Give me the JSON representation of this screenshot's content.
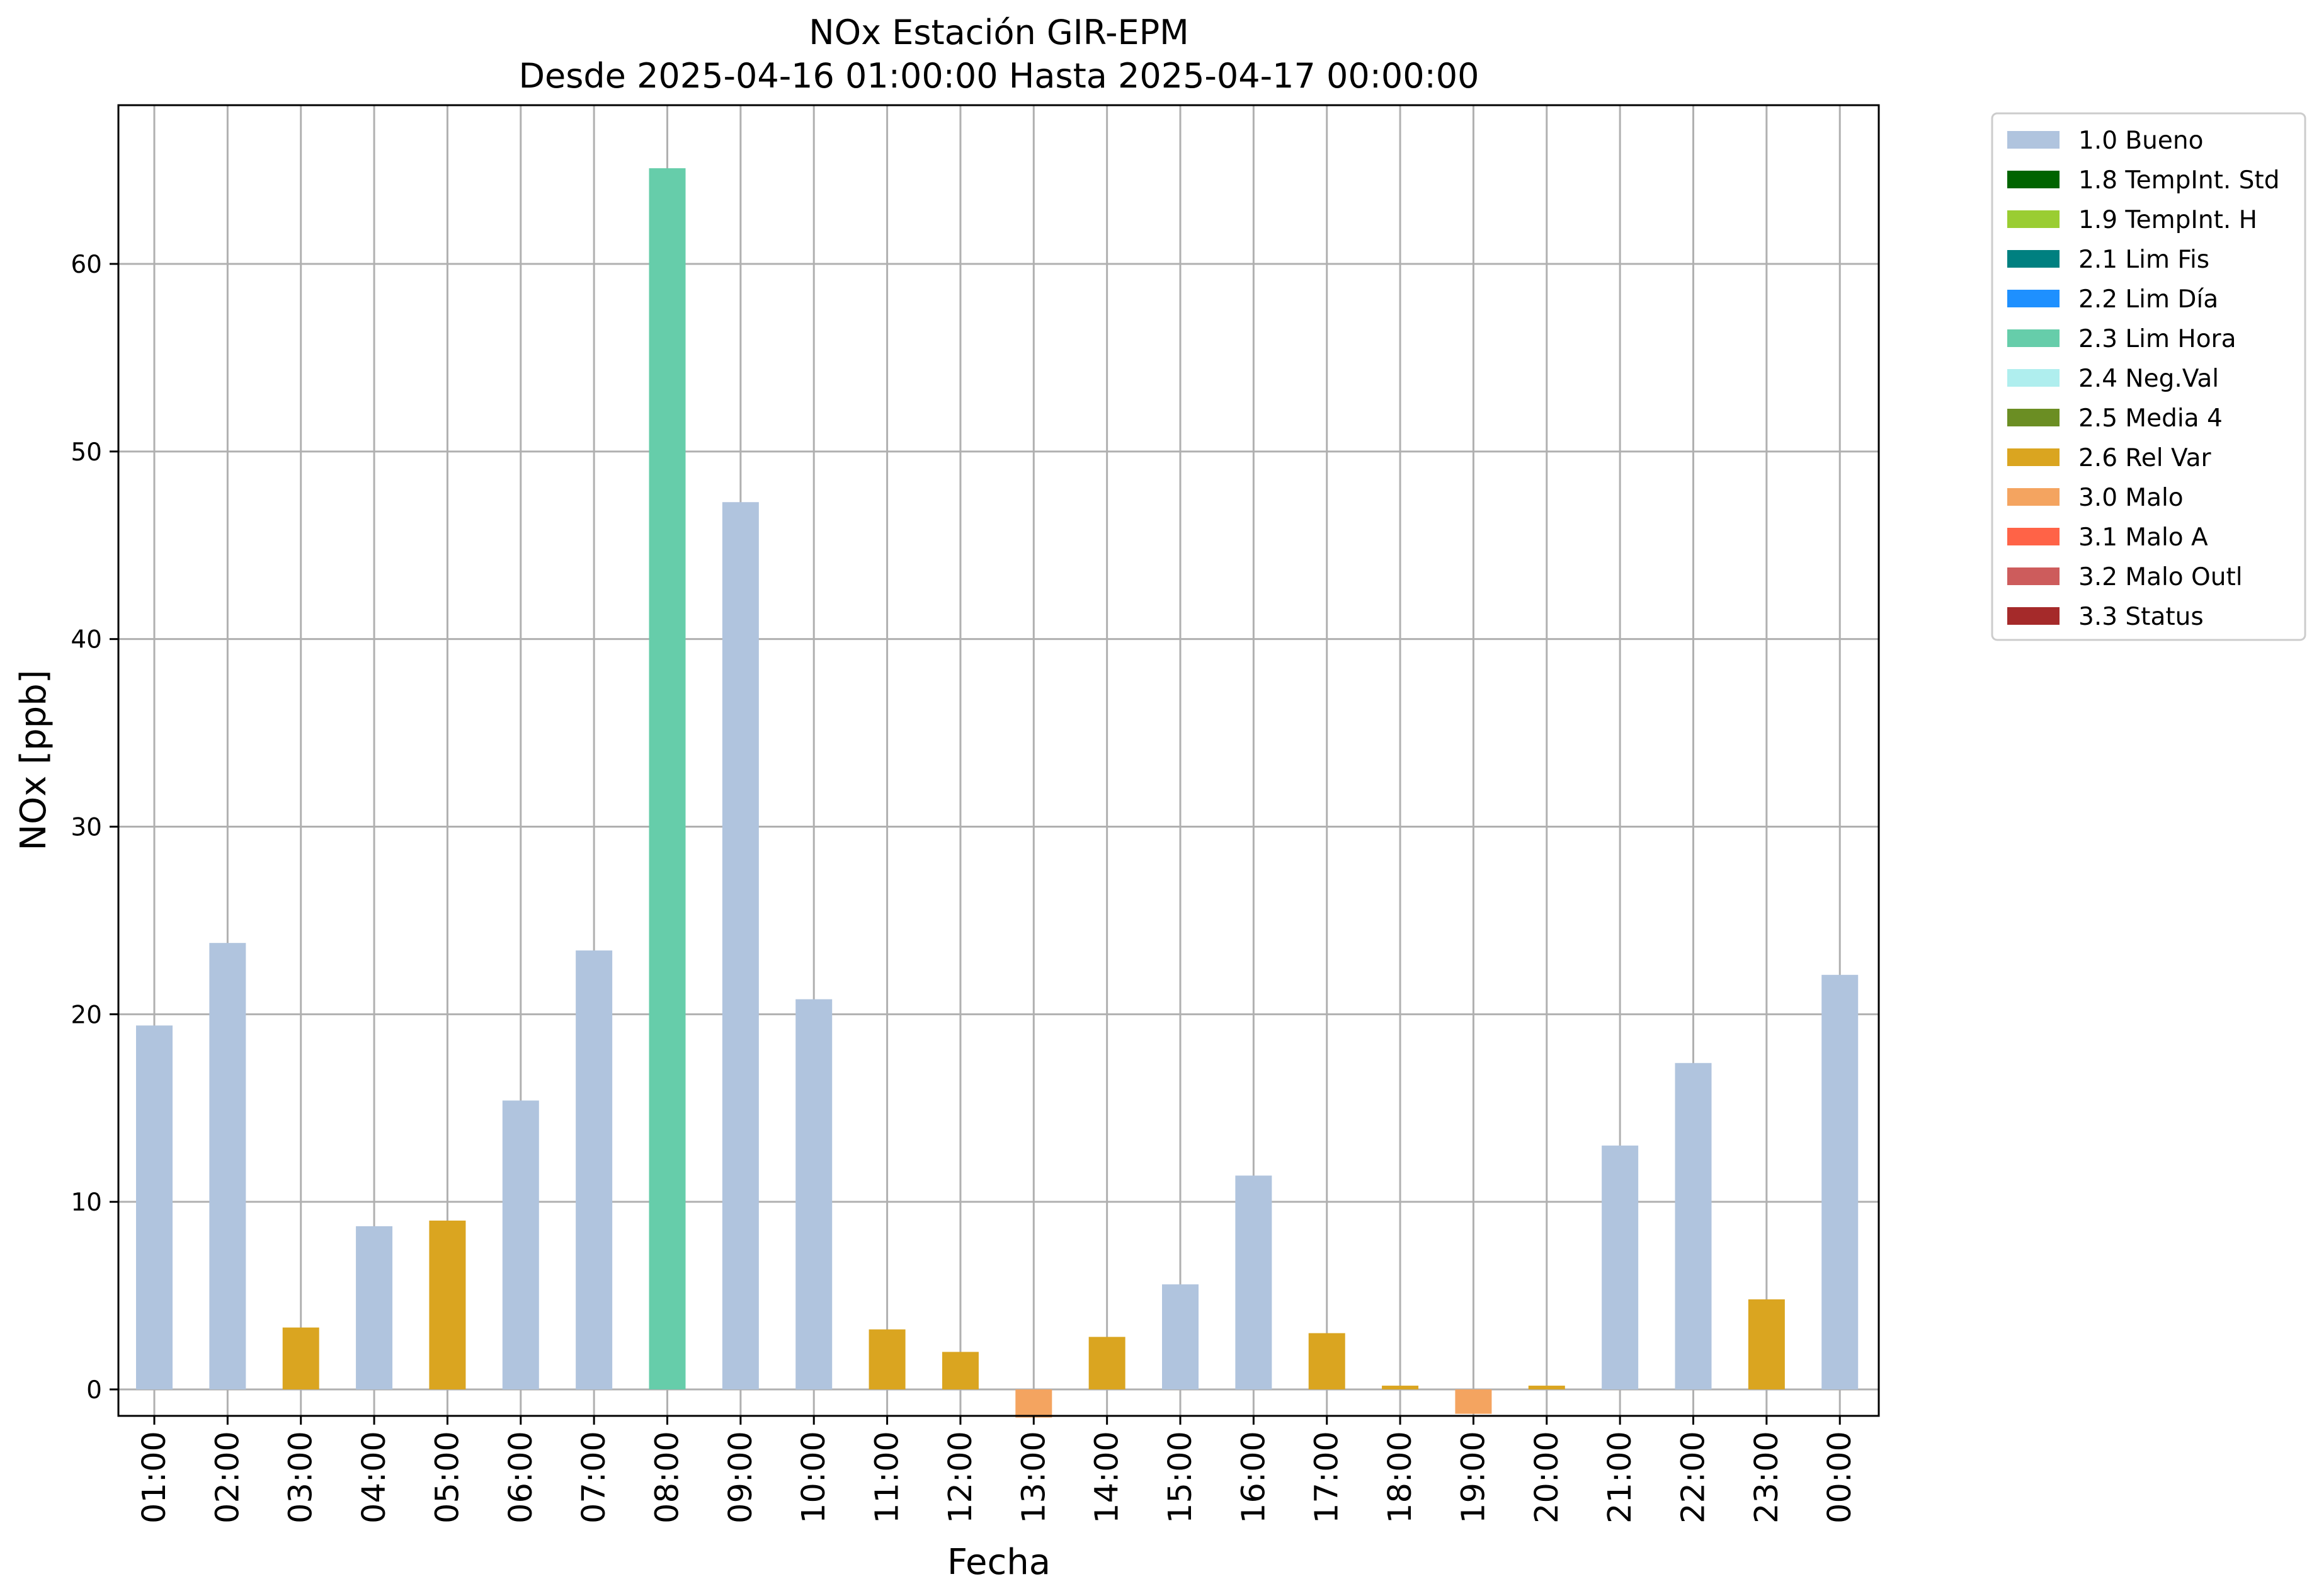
{
  "chart_data": {
    "type": "bar",
    "title": "NOx Estación GIR-EPM",
    "subtitle": "Desde 2025-04-16 01:00:00 Hasta 2025-04-17 00:00:00",
    "xlabel": "Fecha",
    "ylabel": "NOx [ppb]",
    "ylim": [
      -1.5,
      68.5
    ],
    "yticks": [
      0,
      10,
      20,
      30,
      40,
      50,
      60
    ],
    "grid": true,
    "legend_position": "outside-top-right",
    "categories": [
      "01:00",
      "02:00",
      "03:00",
      "04:00",
      "05:00",
      "06:00",
      "07:00",
      "08:00",
      "09:00",
      "10:00",
      "11:00",
      "12:00",
      "13:00",
      "14:00",
      "15:00",
      "16:00",
      "17:00",
      "18:00",
      "19:00",
      "20:00",
      "21:00",
      "22:00",
      "23:00",
      "00:00"
    ],
    "values": [
      19.4,
      23.8,
      3.3,
      8.7,
      9.0,
      15.4,
      23.4,
      65.1,
      47.3,
      20.8,
      3.2,
      2.0,
      -1.5,
      2.8,
      5.6,
      11.4,
      3.0,
      0.2,
      -1.3,
      0.2,
      13.0,
      17.4,
      4.8,
      22.1
    ],
    "flags": [
      "1.0 Bueno",
      "1.0 Bueno",
      "2.6 Rel Var",
      "1.0 Bueno",
      "2.6 Rel Var",
      "1.0 Bueno",
      "1.0 Bueno",
      "2.3 Lim Hora",
      "1.0 Bueno",
      "1.0 Bueno",
      "2.6 Rel Var",
      "2.6 Rel Var",
      "3.0 Malo",
      "2.6 Rel Var",
      "1.0 Bueno",
      "1.0 Bueno",
      "2.6 Rel Var",
      "2.6 Rel Var",
      "3.0 Malo",
      "2.6 Rel Var",
      "1.0 Bueno",
      "1.0 Bueno",
      "2.6 Rel Var",
      "1.0 Bueno"
    ],
    "legend": [
      {
        "label": "1.0 Bueno",
        "color": "#b0c4de"
      },
      {
        "label": "1.8 TempInt. Std",
        "color": "#006400"
      },
      {
        "label": "1.9 TempInt. H",
        "color": "#9acd32"
      },
      {
        "label": "2.1 Lim Fis",
        "color": "#008080"
      },
      {
        "label": "2.2 Lim Día",
        "color": "#1e90ff"
      },
      {
        "label": "2.3 Lim Hora",
        "color": "#66cdaa"
      },
      {
        "label": "2.4 Neg.Val",
        "color": "#afeeee"
      },
      {
        "label": "2.5 Media 4",
        "color": "#6b8e23"
      },
      {
        "label": "2.6 Rel Var",
        "color": "#daa520"
      },
      {
        "label": "3.0 Malo",
        "color": "#f4a460"
      },
      {
        "label": "3.1 Malo A",
        "color": "#ff6347"
      },
      {
        "label": "3.2 Malo Outl",
        "color": "#cd5c5c"
      },
      {
        "label": "3.3 Status",
        "color": "#a52a2a"
      }
    ]
  }
}
